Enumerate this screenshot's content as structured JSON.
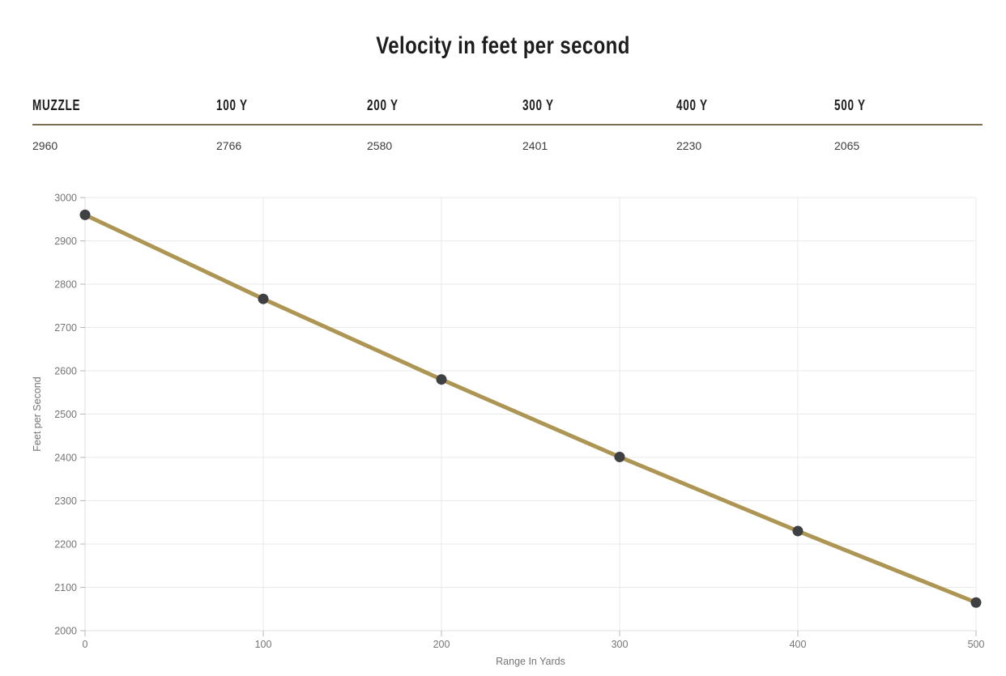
{
  "page": {
    "title": "Velocity in feet per second"
  },
  "table": {
    "headers": [
      "MUZZLE",
      "100 Y",
      "200 Y",
      "300 Y",
      "400 Y",
      "500 Y"
    ],
    "values": [
      "2960",
      "2766",
      "2580",
      "2401",
      "2230",
      "2065"
    ]
  },
  "chart_data": {
    "type": "line",
    "title": "Velocity in feet per second",
    "x": [
      0,
      100,
      200,
      300,
      400,
      500
    ],
    "series": [
      {
        "name": "velocity-fps",
        "values": [
          2960,
          2766,
          2580,
          2401,
          2230,
          2065
        ]
      }
    ],
    "xlabel": "Range In Yards",
    "ylabel": "Feet per Second",
    "xlim": [
      0,
      500
    ],
    "ylim": [
      2000,
      3000
    ],
    "xticks": [
      0,
      100,
      200,
      300,
      400,
      500
    ],
    "yticks": [
      2000,
      2100,
      2200,
      2300,
      2400,
      2500,
      2600,
      2700,
      2800,
      2900,
      3000
    ],
    "grid": true,
    "legend": "none",
    "colors": {
      "line": "#ad9654",
      "point": "#3e4043",
      "grid": "#e9e9e9",
      "axis_line": "#dcdcdc",
      "tick": "#b7b7b7",
      "axis_text": "#757575"
    }
  },
  "colors": {
    "accent_gold": "#ad9654",
    "table_border": "#7d6e50",
    "heading_text": "#1d1d1d",
    "value_text": "#3c3c3c"
  }
}
